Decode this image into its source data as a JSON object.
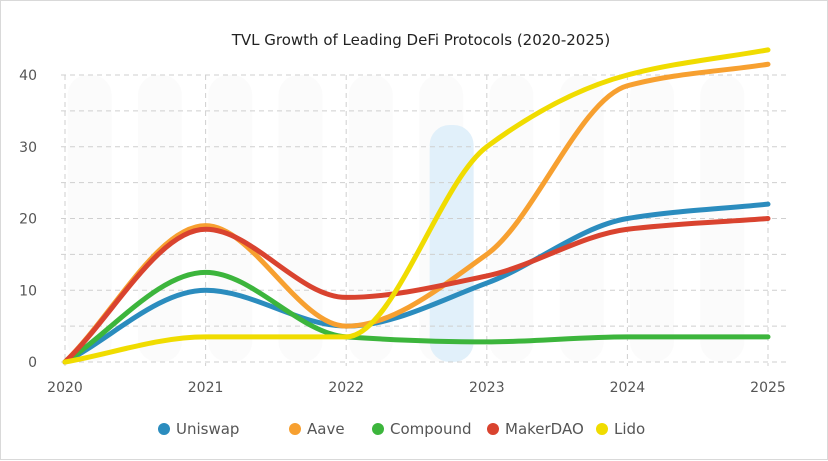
{
  "chart_data": {
    "type": "line",
    "title": "TVL Growth of Leading DeFi Protocols (2020-2025)",
    "xlabel": "",
    "ylabel": "",
    "x": [
      2020,
      2021,
      2022,
      2023,
      2024,
      2025
    ],
    "x_tick_labels": [
      "2020",
      "2021",
      "2022",
      "2023",
      "2024",
      "2025"
    ],
    "ylim": [
      0,
      40
    ],
    "y_ticks": [
      0,
      10,
      20,
      30,
      40
    ],
    "y_tick_labels": [
      "0",
      "10",
      "20",
      "30",
      "40"
    ],
    "grid": true,
    "legend_position": "bottom",
    "highlight_x": 2022.75,
    "series": [
      {
        "name": "Uniswap",
        "color": "#2b8cbe",
        "values": [
          0,
          10,
          5,
          11,
          20,
          22
        ]
      },
      {
        "name": "Aave",
        "color": "#f7a030",
        "values": [
          0,
          19,
          5,
          15,
          38.5,
          41.5
        ]
      },
      {
        "name": "Compound",
        "color": "#3cb53c",
        "values": [
          0,
          12.5,
          3.5,
          2.8,
          3.5,
          3.5
        ]
      },
      {
        "name": "MakerDAO",
        "color": "#d9432f",
        "values": [
          0,
          18.5,
          9,
          12,
          18.5,
          20
        ]
      },
      {
        "name": "Lido",
        "color": "#f0dc00",
        "values": [
          0,
          3.5,
          3.5,
          30,
          40,
          43.5
        ]
      }
    ]
  }
}
